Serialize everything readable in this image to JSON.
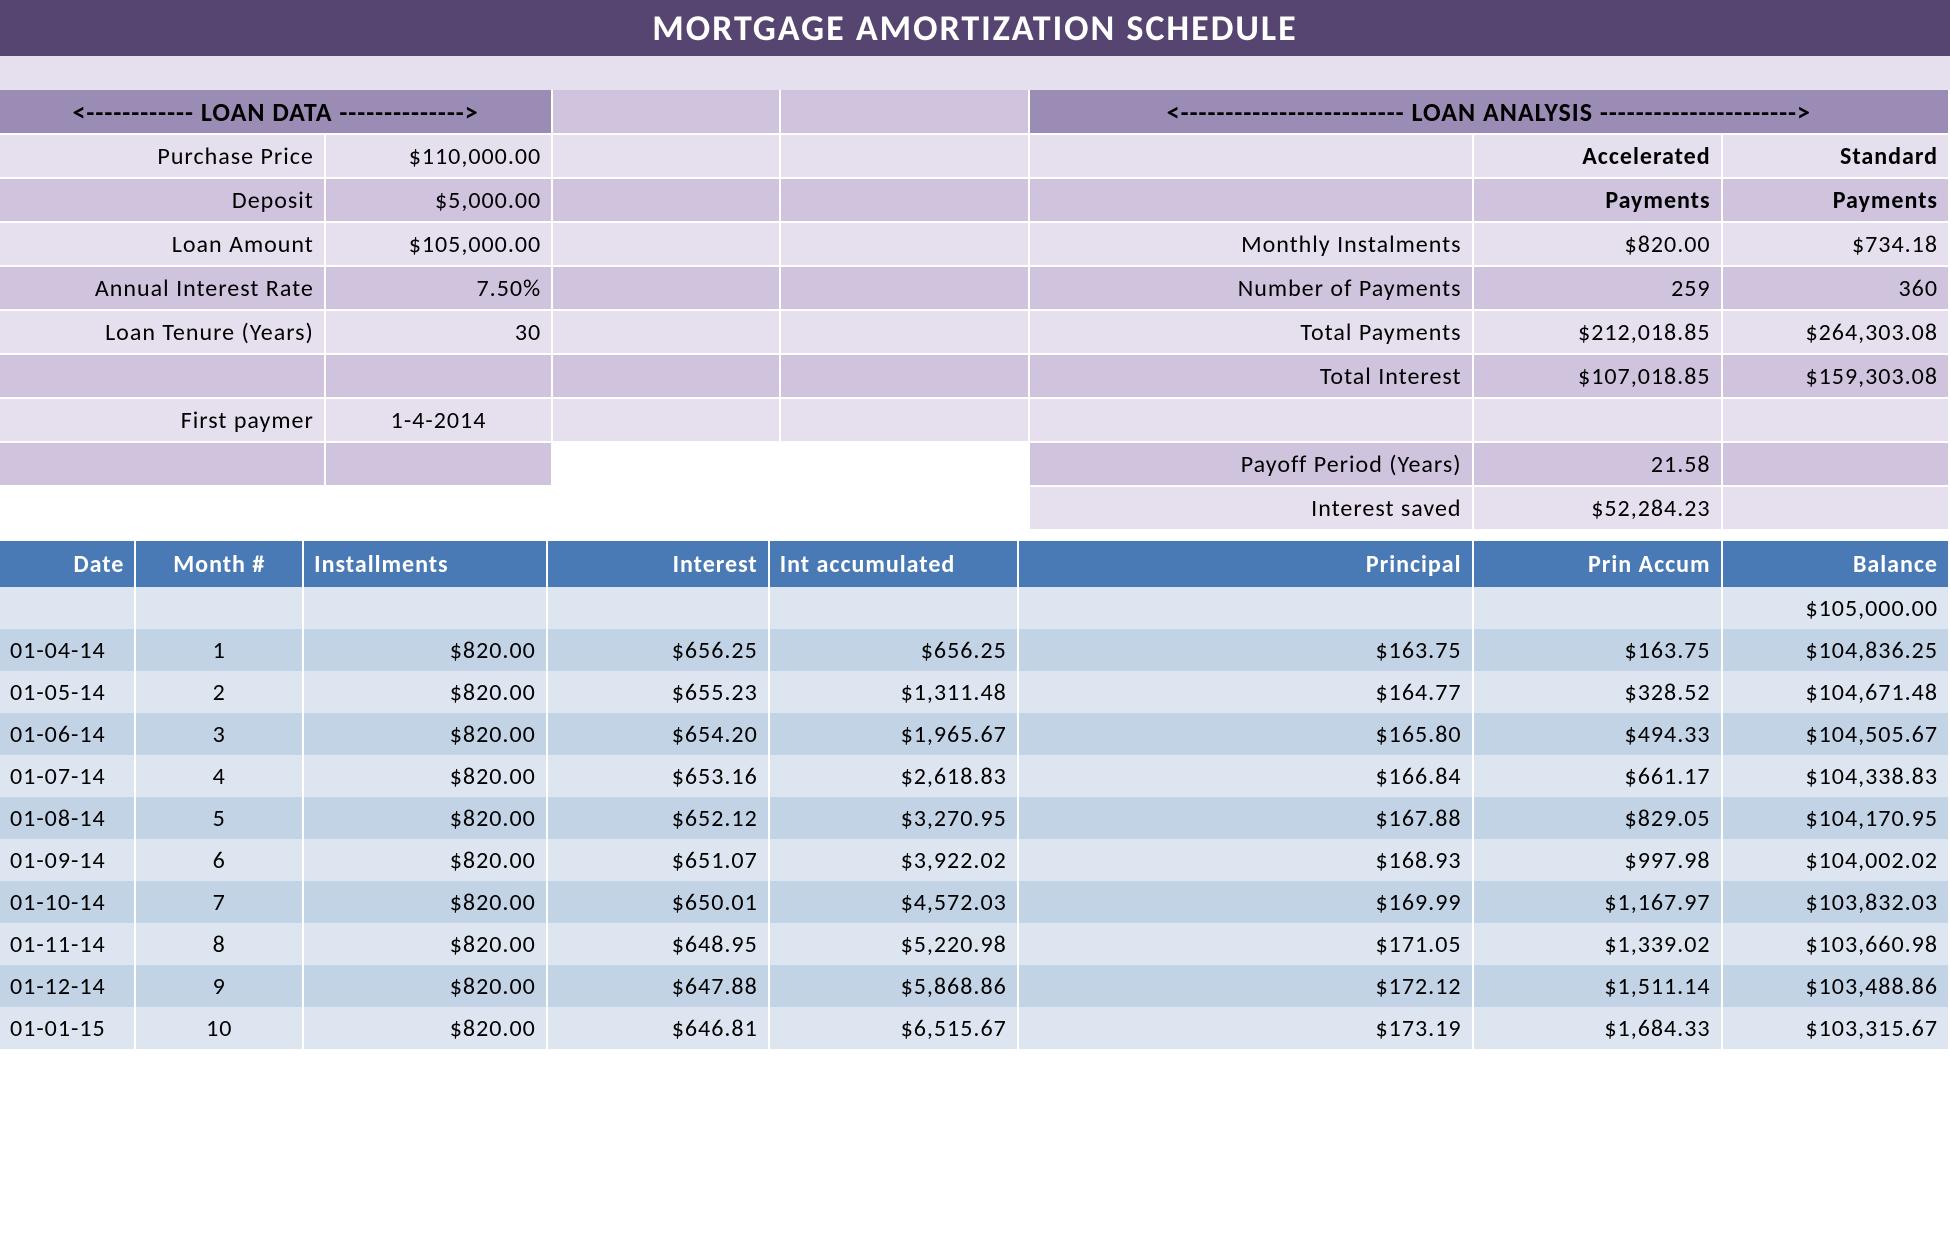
{
  "title": "MORTGAGE AMORTIZATION SCHEDULE",
  "sections": {
    "loan_data_header": "<------------ LOAN DATA -------------->",
    "loan_analysis_header": "<------------------------- LOAN ANALYSIS ---------------------->"
  },
  "loan_data": {
    "purchase_price_label": "Purchase Price",
    "purchase_price": "$110,000.00",
    "deposit_label": "Deposit",
    "deposit": "$5,000.00",
    "loan_amount_label": "Loan Amount",
    "loan_amount": "$105,000.00",
    "air_label": "Annual Interest Rate",
    "air": "7.50%",
    "tenure_label": "Loan Tenure (Years)",
    "tenure": "30",
    "first_payment_label": "First paymer",
    "first_payment": "1-4-2014"
  },
  "loan_analysis": {
    "col_accel_1": "Accelerated",
    "col_accel_2": "Payments",
    "col_std_1": "Standard",
    "col_std_2": "Payments",
    "monthly_label": "Monthly Instalments",
    "monthly_accel": "$820.00",
    "monthly_std": "$734.18",
    "num_pay_label": "Number of Payments",
    "num_pay_accel": "259",
    "num_pay_std": "360",
    "total_pay_label": "Total Payments",
    "total_pay_accel": "$212,018.85",
    "total_pay_std": "$264,303.08",
    "total_int_label": "Total Interest",
    "total_int_accel": "$107,018.85",
    "total_int_std": "$159,303.08",
    "payoff_label": "Payoff Period (Years)",
    "payoff": "21.58",
    "int_saved_label": "Interest saved",
    "int_saved": "$52,284.23"
  },
  "schedule": {
    "columns": [
      "Date",
      "Month #",
      "Installments",
      "Interest",
      "Int accumulated",
      "Principal",
      "Prin Accum",
      "Balance"
    ],
    "initial_balance": "$105,000.00",
    "rows": [
      {
        "date": "01-04-14",
        "month": "1",
        "inst": "$820.00",
        "int": "$656.25",
        "intacc": "$656.25",
        "prin": "$163.75",
        "prinacc": "$163.75",
        "bal": "$104,836.25"
      },
      {
        "date": "01-05-14",
        "month": "2",
        "inst": "$820.00",
        "int": "$655.23",
        "intacc": "$1,311.48",
        "prin": "$164.77",
        "prinacc": "$328.52",
        "bal": "$104,671.48"
      },
      {
        "date": "01-06-14",
        "month": "3",
        "inst": "$820.00",
        "int": "$654.20",
        "intacc": "$1,965.67",
        "prin": "$165.80",
        "prinacc": "$494.33",
        "bal": "$104,505.67"
      },
      {
        "date": "01-07-14",
        "month": "4",
        "inst": "$820.00",
        "int": "$653.16",
        "intacc": "$2,618.83",
        "prin": "$166.84",
        "prinacc": "$661.17",
        "bal": "$104,338.83"
      },
      {
        "date": "01-08-14",
        "month": "5",
        "inst": "$820.00",
        "int": "$652.12",
        "intacc": "$3,270.95",
        "prin": "$167.88",
        "prinacc": "$829.05",
        "bal": "$104,170.95"
      },
      {
        "date": "01-09-14",
        "month": "6",
        "inst": "$820.00",
        "int": "$651.07",
        "intacc": "$3,922.02",
        "prin": "$168.93",
        "prinacc": "$997.98",
        "bal": "$104,002.02"
      },
      {
        "date": "01-10-14",
        "month": "7",
        "inst": "$820.00",
        "int": "$650.01",
        "intacc": "$4,572.03",
        "prin": "$169.99",
        "prinacc": "$1,167.97",
        "bal": "$103,832.03"
      },
      {
        "date": "01-11-14",
        "month": "8",
        "inst": "$820.00",
        "int": "$648.95",
        "intacc": "$5,220.98",
        "prin": "$171.05",
        "prinacc": "$1,339.02",
        "bal": "$103,660.98"
      },
      {
        "date": "01-12-14",
        "month": "9",
        "inst": "$820.00",
        "int": "$647.88",
        "intacc": "$5,868.86",
        "prin": "$172.12",
        "prinacc": "$1,511.14",
        "bal": "$103,488.86"
      },
      {
        "date": "01-01-15",
        "month": "10",
        "inst": "$820.00",
        "int": "$646.81",
        "intacc": "$6,515.67",
        "prin": "$173.19",
        "prinacc": "$1,684.33",
        "bal": "$103,315.67"
      }
    ]
  },
  "colors": {
    "title_bg": "#574571",
    "section_bg": "#9b8cb5",
    "purple_light": "#e6e0ee",
    "purple_med": "#cfc3de",
    "table_header": "#4a7ab5",
    "blue_light": "#dde6f0",
    "blue_med": "#c2d3e6"
  }
}
